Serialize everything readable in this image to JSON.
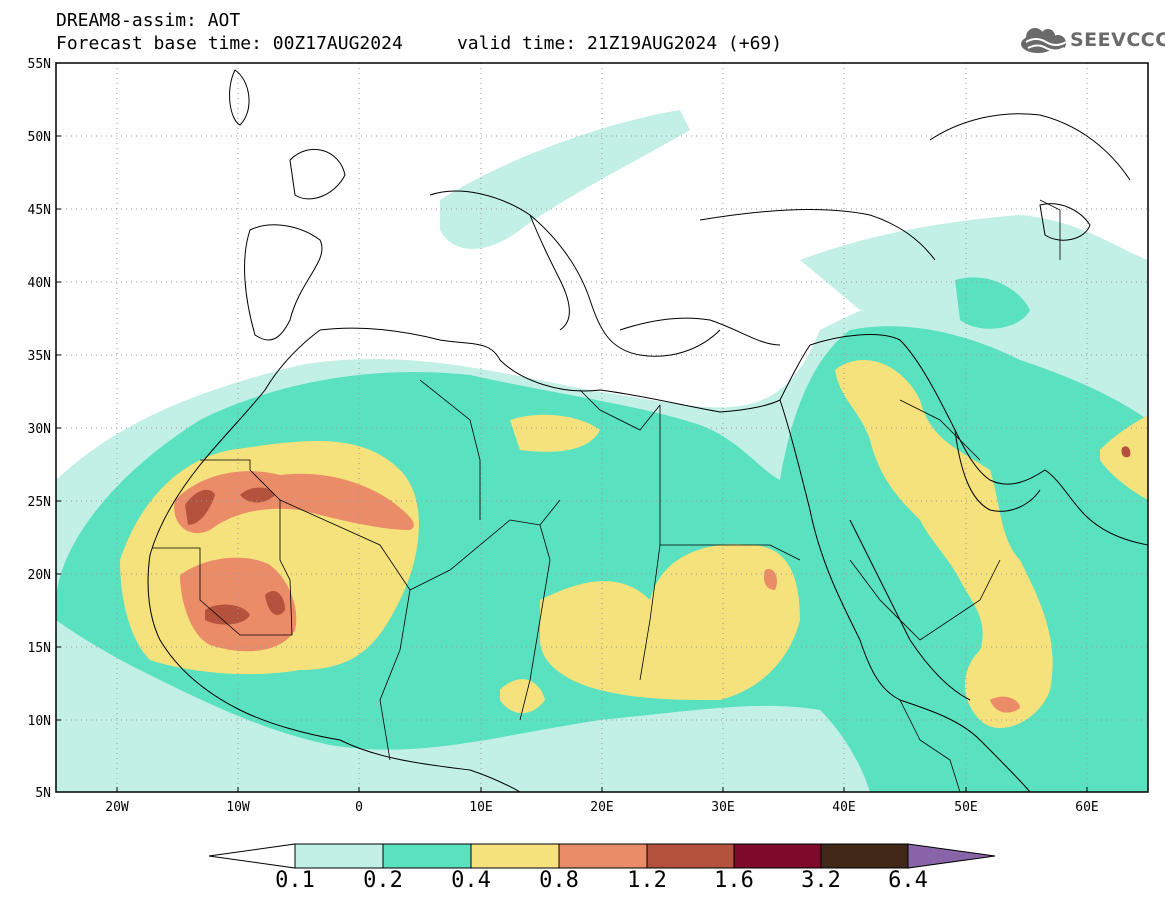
{
  "title": {
    "line1": "DREAM8-assim: AOT",
    "base_time": "Forecast base time: 00Z17AUG2024",
    "valid_time": "valid time: 21Z19AUG2024 (+69)"
  },
  "logo": {
    "text": "SEEVCCC",
    "icon": "cloud-icon"
  },
  "axes": {
    "lat_labels": [
      "55N",
      "50N",
      "45N",
      "40N",
      "35N",
      "30N",
      "25N",
      "20N",
      "15N",
      "10N",
      "5N"
    ],
    "lon_labels": [
      "20W",
      "10W",
      "0",
      "10E",
      "20E",
      "30E",
      "40E",
      "50E",
      "60E"
    ],
    "lat_range": [
      5,
      55
    ],
    "lon_range": [
      -25,
      65
    ]
  },
  "colorbar": {
    "labels": [
      "0.1",
      "0.2",
      "0.4",
      "0.8",
      "1.2",
      "1.6",
      "3.2",
      "6.4"
    ],
    "colors": [
      "#ffffff",
      "#c2efe6",
      "#5ae1bf",
      "#f5e27c",
      "#eb8c69",
      "#b4523d",
      "#7d0a2b",
      "#3f2818",
      "#8a64a8"
    ]
  }
}
